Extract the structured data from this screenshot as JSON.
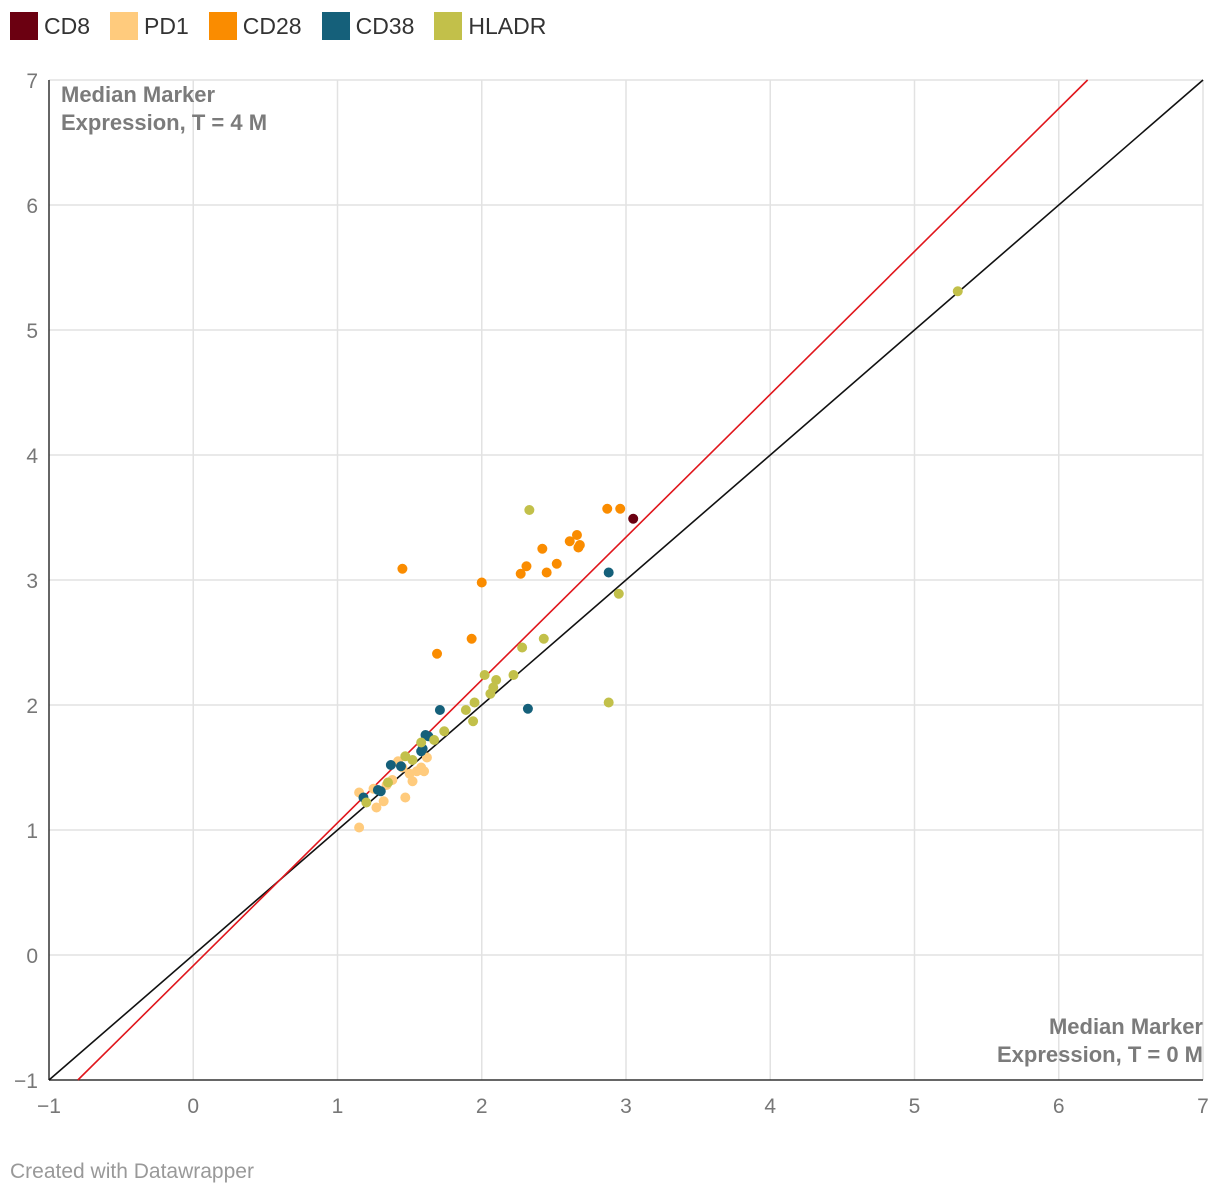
{
  "chart_data": {
    "type": "scatter",
    "xlim": [
      -1,
      7
    ],
    "ylim": [
      -1,
      7
    ],
    "x_ticks": [
      "−1",
      "0",
      "1",
      "2",
      "3",
      "4",
      "5",
      "6",
      "7"
    ],
    "y_ticks": [
      "−1",
      "0",
      "1",
      "2",
      "3",
      "4",
      "5",
      "6",
      "7"
    ],
    "grid": true,
    "legend_position": "top-left",
    "annotations": {
      "y_axis_title_line1": "Median Marker",
      "y_axis_title_line2": "Expression, T = 4 M",
      "x_axis_title_line1": "Median Marker",
      "x_axis_title_line2": "Expression, T = 0 M"
    },
    "reference_lines": [
      {
        "color": "#111111",
        "points": [
          [
            -1,
            -1
          ],
          [
            7,
            7
          ]
        ]
      },
      {
        "color": "#e0161c",
        "points": [
          [
            -0.8,
            -1
          ],
          [
            6.2,
            7
          ]
        ]
      }
    ],
    "series": [
      {
        "name": "CD8",
        "color": "#6b0011",
        "points": [
          [
            3.05,
            3.49
          ]
        ]
      },
      {
        "name": "PD1",
        "color": "#ffcb7d",
        "points": [
          [
            1.15,
            1.02
          ],
          [
            1.15,
            1.3
          ],
          [
            1.27,
            1.18
          ],
          [
            1.32,
            1.23
          ],
          [
            1.34,
            1.36
          ],
          [
            1.38,
            1.4
          ],
          [
            1.42,
            1.55
          ],
          [
            1.47,
            1.26
          ],
          [
            1.5,
            1.45
          ],
          [
            1.52,
            1.39
          ],
          [
            1.55,
            1.47
          ],
          [
            1.58,
            1.5
          ],
          [
            1.6,
            1.47
          ],
          [
            1.62,
            1.58
          ],
          [
            1.45,
            1.5
          ],
          [
            1.25,
            1.33
          ]
        ]
      },
      {
        "name": "CD28",
        "color": "#fa8c00",
        "points": [
          [
            1.45,
            3.09
          ],
          [
            1.69,
            2.41
          ],
          [
            1.93,
            2.53
          ],
          [
            2.0,
            2.98
          ],
          [
            2.27,
            3.05
          ],
          [
            2.31,
            3.11
          ],
          [
            2.42,
            3.25
          ],
          [
            2.45,
            3.06
          ],
          [
            2.52,
            3.13
          ],
          [
            2.61,
            3.31
          ],
          [
            2.66,
            3.36
          ],
          [
            2.67,
            3.26
          ],
          [
            2.68,
            3.28
          ],
          [
            2.87,
            3.57
          ],
          [
            2.96,
            3.57
          ]
        ]
      },
      {
        "name": "CD38",
        "color": "#15607a",
        "points": [
          [
            1.18,
            1.26
          ],
          [
            1.28,
            1.32
          ],
          [
            1.3,
            1.31
          ],
          [
            1.37,
            1.52
          ],
          [
            1.44,
            1.51
          ],
          [
            1.58,
            1.63
          ],
          [
            1.59,
            1.65
          ],
          [
            1.61,
            1.76
          ],
          [
            1.63,
            1.75
          ],
          [
            1.71,
            1.96
          ],
          [
            2.32,
            1.97
          ],
          [
            2.88,
            3.06
          ]
        ]
      },
      {
        "name": "HLADR",
        "color": "#c2c04a",
        "points": [
          [
            1.2,
            1.22
          ],
          [
            1.35,
            1.38
          ],
          [
            1.47,
            1.59
          ],
          [
            1.52,
            1.56
          ],
          [
            1.58,
            1.7
          ],
          [
            1.67,
            1.72
          ],
          [
            1.74,
            1.79
          ],
          [
            1.89,
            1.96
          ],
          [
            1.94,
            1.87
          ],
          [
            1.95,
            2.02
          ],
          [
            2.02,
            2.24
          ],
          [
            2.06,
            2.09
          ],
          [
            2.08,
            2.14
          ],
          [
            2.1,
            2.2
          ],
          [
            2.22,
            2.24
          ],
          [
            2.28,
            2.46
          ],
          [
            2.33,
            3.56
          ],
          [
            2.43,
            2.53
          ],
          [
            2.88,
            2.02
          ],
          [
            2.95,
            2.89
          ],
          [
            5.3,
            5.31
          ]
        ]
      }
    ]
  },
  "footer": {
    "credit": "Created with Datawrapper"
  }
}
